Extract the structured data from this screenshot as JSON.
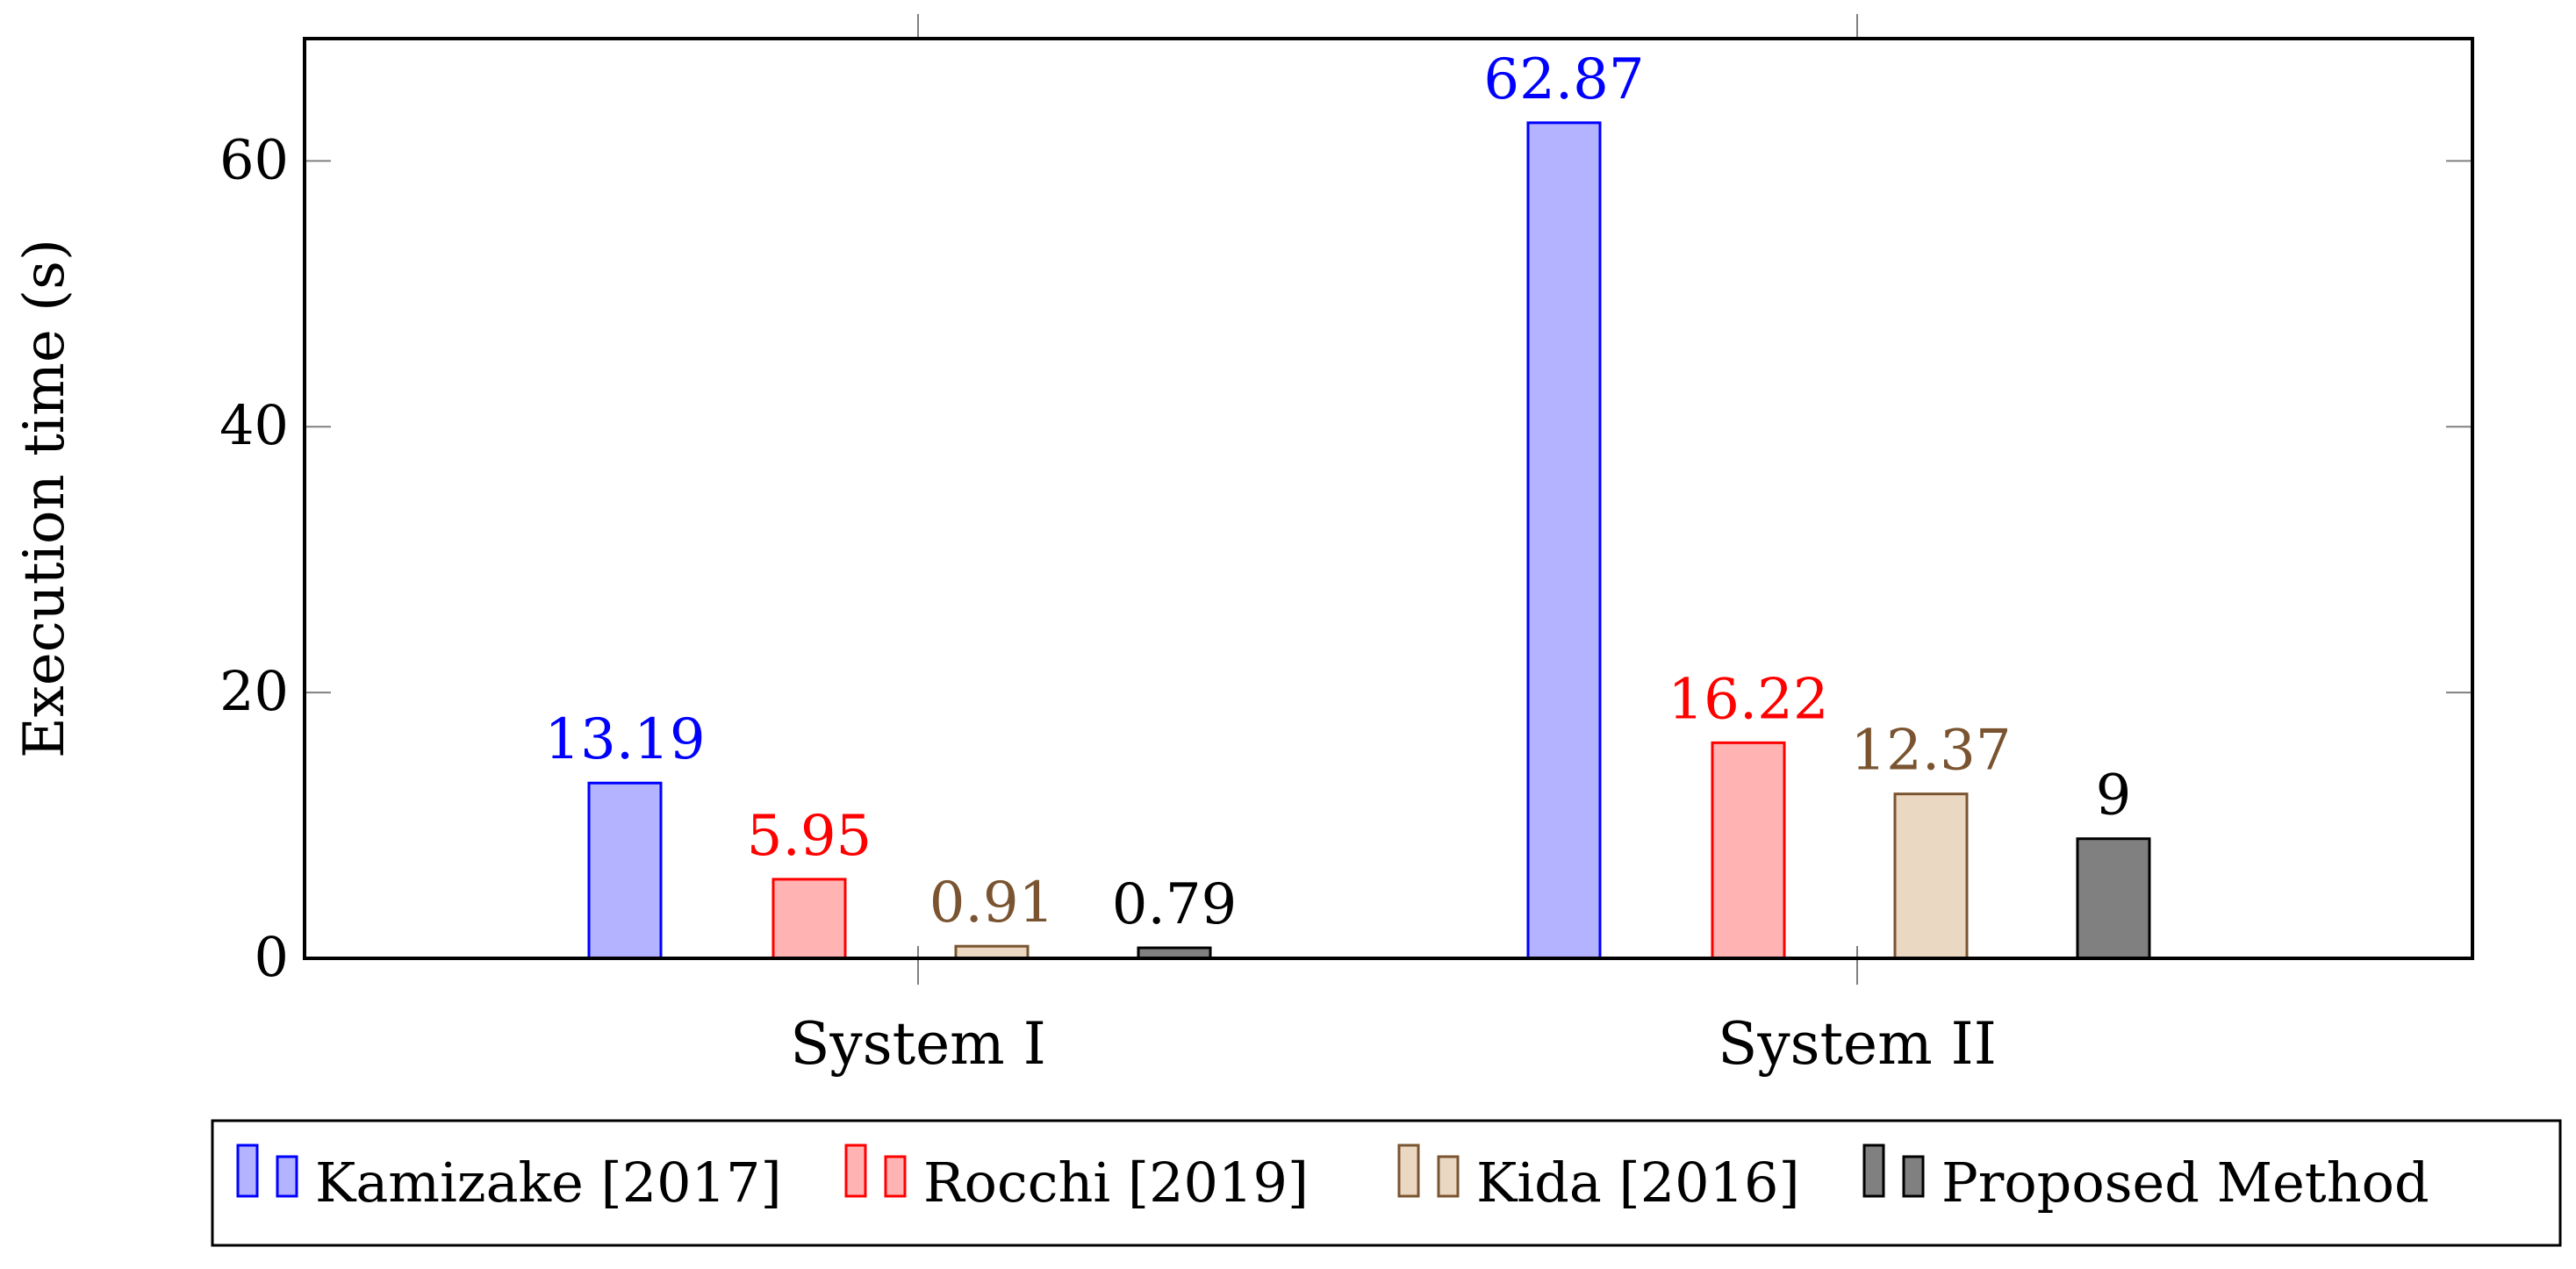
{
  "chart_data": {
    "type": "bar",
    "categories": [
      "System I",
      "System II"
    ],
    "ylabel": "Execution time (s)",
    "xlabel": "",
    "ylim": [
      0,
      69.2
    ],
    "yticks": [
      0,
      20,
      40,
      60
    ],
    "grid": false,
    "legend_position": "bottom",
    "series": [
      {
        "name": "Kamizake [2017]",
        "values": [
          13.19,
          62.87
        ],
        "labels": [
          "13.19",
          "62.87"
        ],
        "fill": "#b3b3ff",
        "stroke": "#0000ff",
        "label_color": "#0000ff"
      },
      {
        "name": "Rocchi [2019]",
        "values": [
          5.95,
          16.22
        ],
        "labels": [
          "5.95",
          "16.22"
        ],
        "fill": "#ffb3b3",
        "stroke": "#ff0000",
        "label_color": "#ff0000"
      },
      {
        "name": "Kida [2016]",
        "values": [
          0.91,
          12.37
        ],
        "labels": [
          "0.91",
          "12.37"
        ],
        "fill": "#ead8c3",
        "stroke": "#7a5430",
        "label_color": "#7a5430"
      },
      {
        "name": "Proposed Method",
        "values": [
          0.79,
          9
        ],
        "labels": [
          "0.79",
          "9"
        ],
        "fill": "#808080",
        "stroke": "#000000",
        "label_color": "#000000"
      }
    ]
  }
}
